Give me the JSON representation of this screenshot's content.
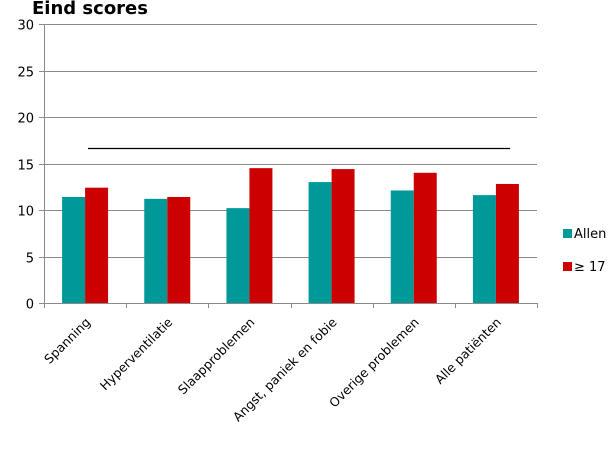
{
  "chart_data": {
    "type": "bar",
    "title": "Eind scores",
    "xlabel": "",
    "ylabel": "",
    "ylim": [
      0,
      30
    ],
    "yticks": [
      0,
      5,
      10,
      15,
      20,
      25,
      30
    ],
    "grid": true,
    "legend_position": "right",
    "categories": [
      "Spanning",
      "Hyperventilatie",
      "Slaapproblemen",
      "Angst, paniek en fobie",
      "Overige problemen",
      "Alle patiënten"
    ],
    "series": [
      {
        "name": "Allen",
        "color": "#009999",
        "values": [
          11.4,
          11.2,
          10.2,
          13.0,
          12.1,
          11.6
        ]
      },
      {
        "name": "≥ 17",
        "color": "#cc0000",
        "values": [
          12.4,
          11.4,
          14.5,
          14.4,
          14.0,
          12.8
        ]
      }
    ],
    "reference_line": {
      "y": 16.7,
      "color": "#000000"
    }
  }
}
